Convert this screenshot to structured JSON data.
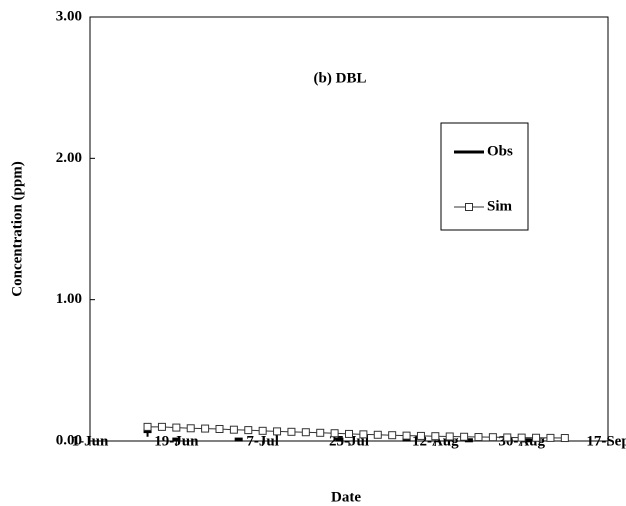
{
  "chart_data": {
    "type": "line",
    "title": "(b) DBL",
    "x_label": "Date",
    "y_label": "Concentration (ppm)",
    "xlim": [
      "1-Jun",
      "17-Sep"
    ],
    "xticks": [
      "1-Jun",
      "19-Jun",
      "7-Jul",
      "25-Jul",
      "12-Aug",
      "30-Aug",
      "17-Sep"
    ],
    "ylim": [
      0,
      3
    ],
    "yticks": [
      {
        "value": 0,
        "label": "0.00"
      },
      {
        "value": 1,
        "label": "1.00"
      },
      {
        "value": 2,
        "label": "2.00"
      },
      {
        "value": 3,
        "label": "3.00"
      }
    ],
    "grid": false,
    "legend": "upper right",
    "series": [
      {
        "name": "Obs",
        "color": "#000000",
        "marker": "dash",
        "x": [
          "13-Jun",
          "19-Jun",
          "2-Jul",
          "23-Jul",
          "6-Aug",
          "19-Aug",
          "31-Aug"
        ],
        "values": [
          0.07,
          0.01,
          0.01,
          0.01,
          0.01,
          0.005,
          0.005
        ],
        "errors": [
          0.04,
          0.01,
          0.005,
          0.005,
          0.005,
          0.005,
          0.005
        ]
      },
      {
        "name": "Sim",
        "color": "#333333",
        "marker": "square",
        "x": [
          "13-Jun",
          "16-Jun",
          "19-Jun",
          "22-Jun",
          "25-Jun",
          "28-Jun",
          "1-Jul",
          "4-Jul",
          "7-Jul",
          "10-Jul",
          "13-Jul",
          "16-Jul",
          "19-Jul",
          "22-Jul",
          "25-Jul",
          "28-Jul",
          "31-Jul",
          "3-Aug",
          "6-Aug",
          "9-Aug",
          "12-Aug",
          "15-Aug",
          "18-Aug",
          "21-Aug",
          "24-Aug",
          "27-Aug",
          "30-Aug",
          "2-Sep",
          "5-Sep",
          "8-Sep"
        ],
        "values": [
          0.1,
          0.1,
          0.095,
          0.09,
          0.088,
          0.085,
          0.08,
          0.077,
          0.072,
          0.068,
          0.065,
          0.062,
          0.058,
          0.055,
          0.05,
          0.047,
          0.044,
          0.041,
          0.038,
          0.036,
          0.034,
          0.032,
          0.03,
          0.028,
          0.027,
          0.025,
          0.024,
          0.023,
          0.022,
          0.021
        ]
      }
    ]
  }
}
